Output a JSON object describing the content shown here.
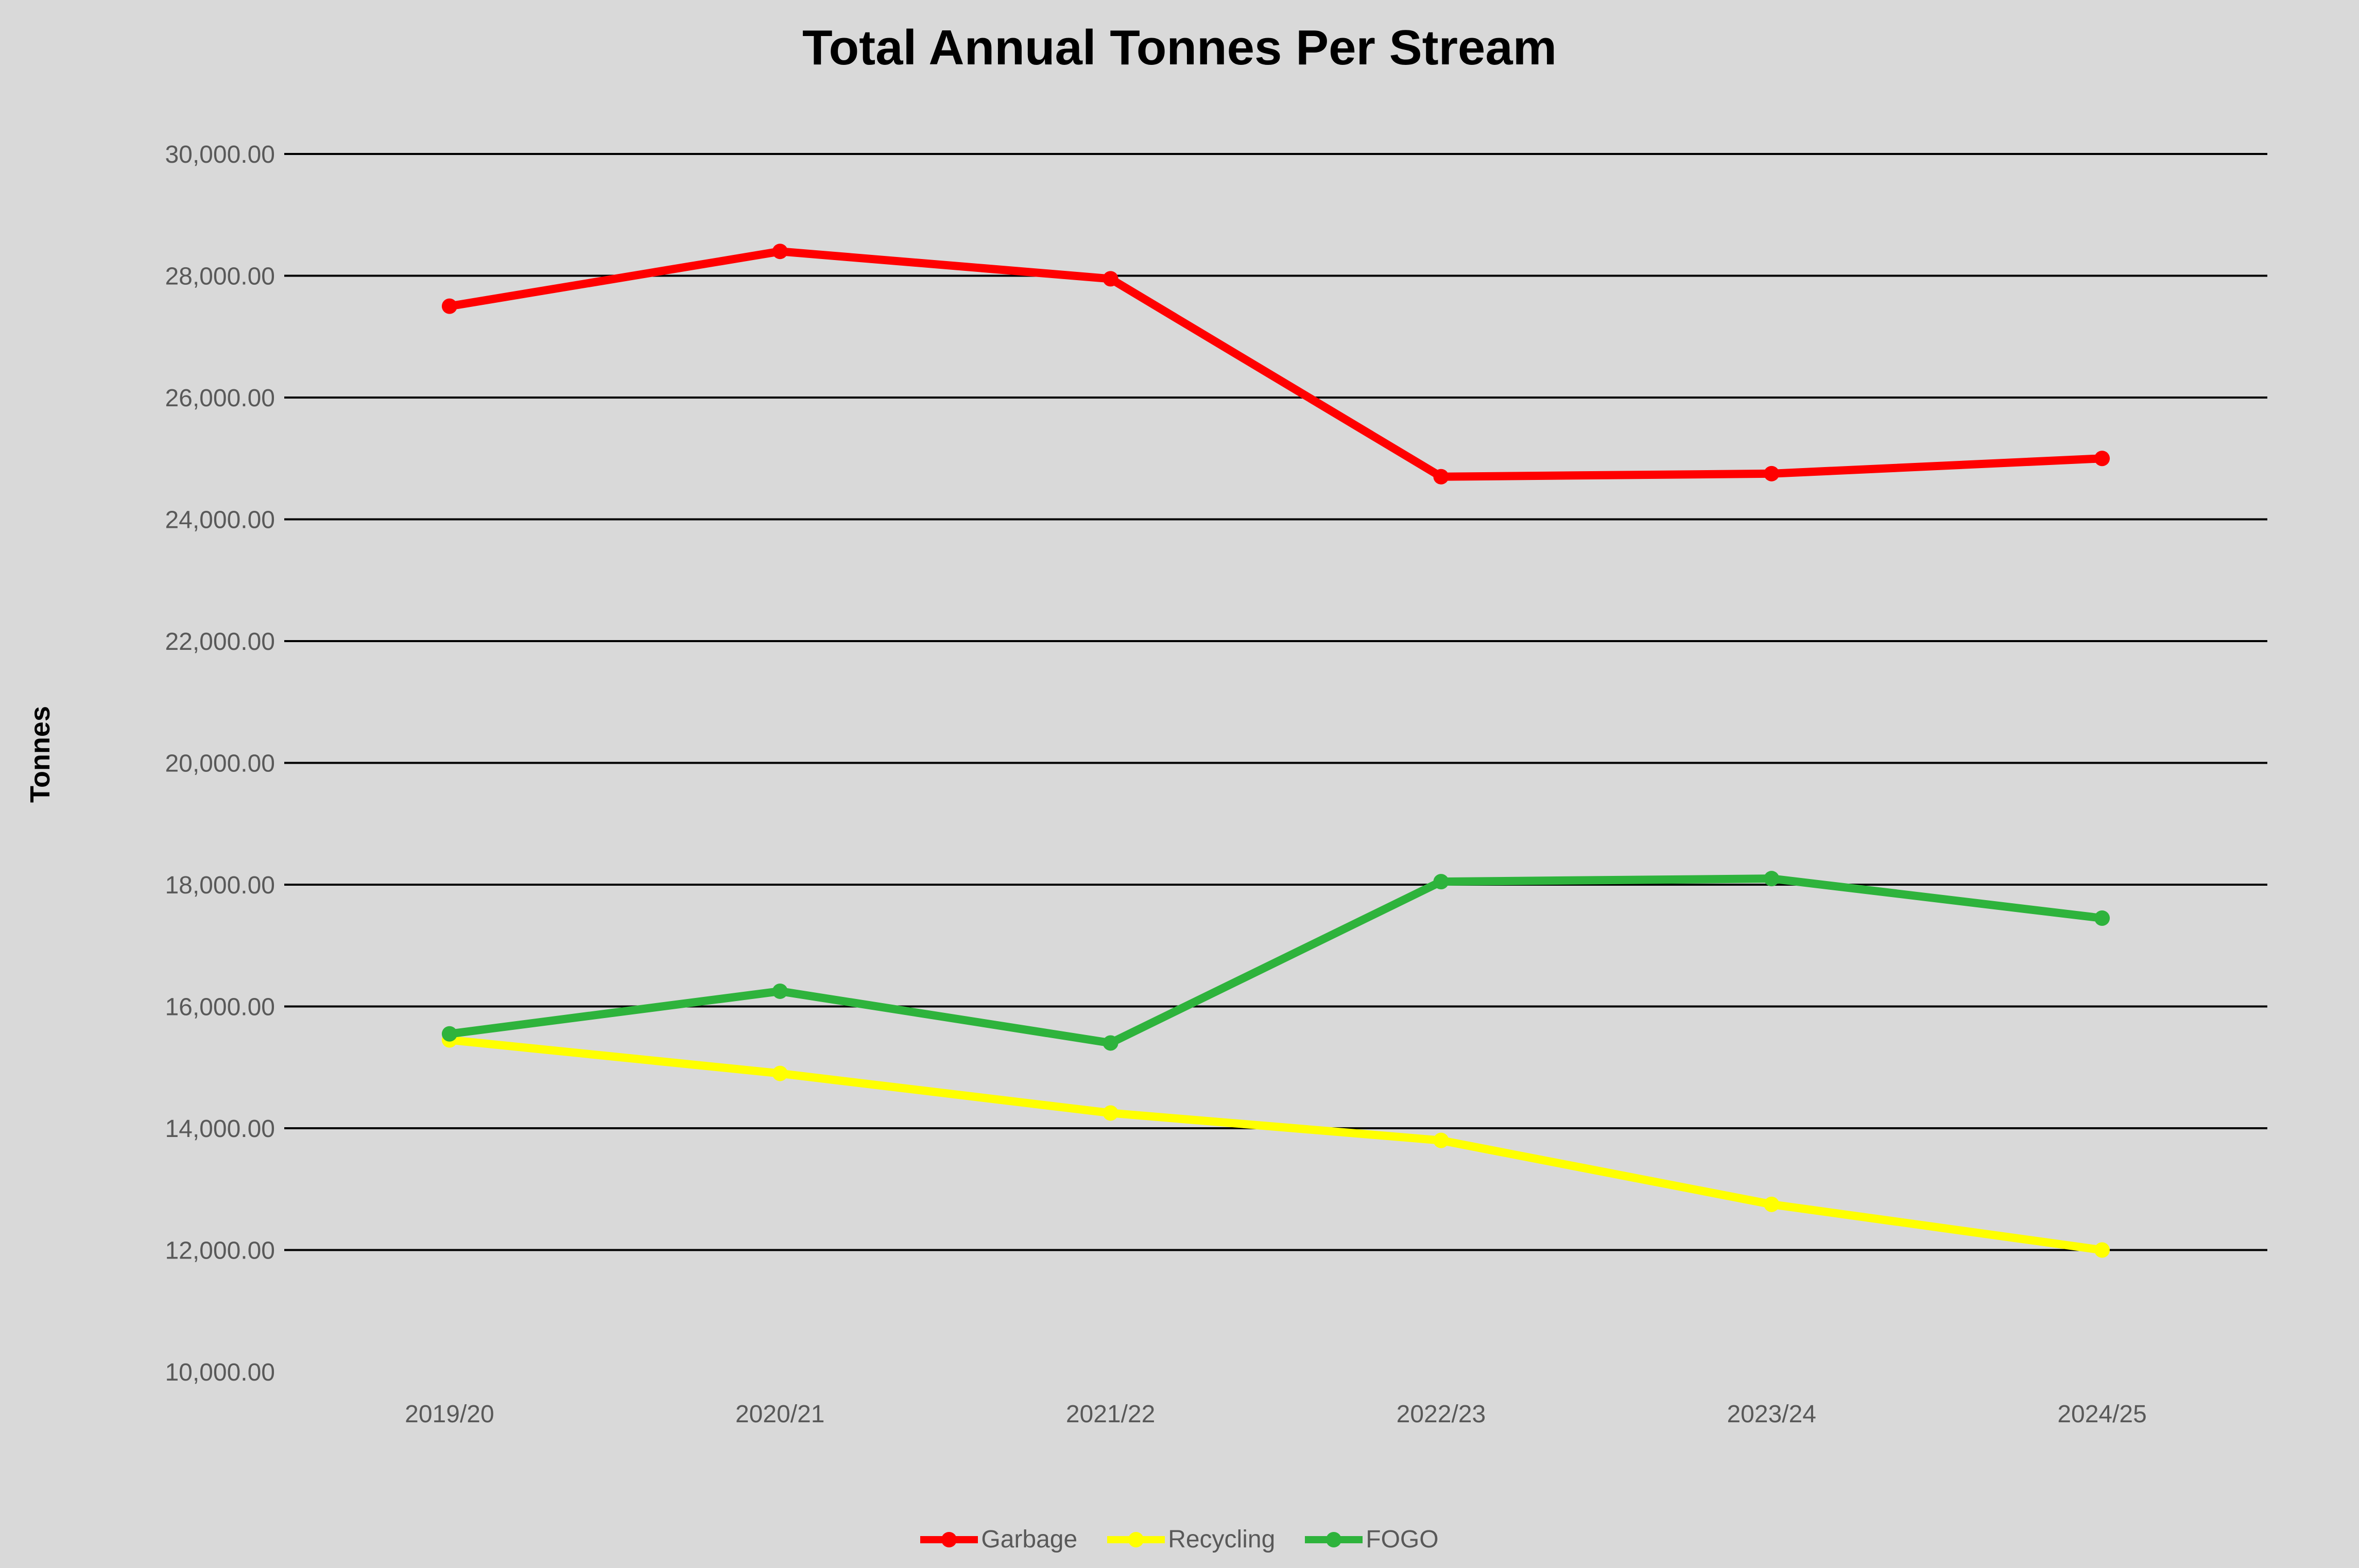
{
  "title": "Total Annual Tonnes Per Stream",
  "y_axis_label": "Tonnes",
  "colors": {
    "background": "#d9d9d9",
    "gridline": "#000000",
    "tick_text": "#595959",
    "title_text": "#000000",
    "garbage": "#ff0000",
    "recycling": "#ffff00",
    "fogo": "#2eb33c"
  },
  "y_ticks": [
    "30,000.00",
    "28,000.00",
    "26,000.00",
    "24,000.00",
    "22,000.00",
    "20,000.00",
    "18,000.00",
    "16,000.00",
    "14,000.00",
    "12,000.00",
    "10,000.00"
  ],
  "legend": [
    {
      "label": "Garbage",
      "color": "#ff0000"
    },
    {
      "label": "Recycling",
      "color": "#ffff00"
    },
    {
      "label": "FOGO",
      "color": "#2eb33c"
    }
  ],
  "chart_data": {
    "type": "line",
    "title": "Total Annual Tonnes Per Stream",
    "xlabel": "",
    "ylabel": "Tonnes",
    "categories": [
      "2019/20",
      "2020/21",
      "2021/22",
      "2022/23",
      "2023/24",
      "2024/25"
    ],
    "series": [
      {
        "name": "Garbage",
        "color": "#ff0000",
        "values": [
          27500,
          28400,
          27950,
          24700,
          24750,
          25000
        ]
      },
      {
        "name": "Recycling",
        "color": "#ffff00",
        "values": [
          15450,
          14900,
          14250,
          13800,
          12750,
          12000
        ]
      },
      {
        "name": "FOGO",
        "color": "#2eb33c",
        "values": [
          15550,
          16250,
          15400,
          18050,
          18100,
          17450
        ]
      }
    ],
    "ylim": [
      10000,
      30000
    ],
    "y_tick_step": 2000,
    "gridlines": {
      "show": true,
      "min": 12000,
      "max": 30000,
      "orientation": "horizontal"
    },
    "legend_position": "bottom",
    "marker": "circle"
  }
}
